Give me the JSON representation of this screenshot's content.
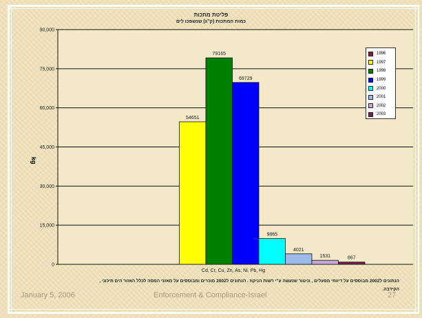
{
  "slide": {
    "footer_date": "January 5, 2006",
    "footer_title": "Enforcement & Compliance-Israel",
    "page_number": "27",
    "footnote": "הנתונים ל2002 מבוססים על דיווחי מפעלים , וניטור שנעשה ע\"י רשות הניקוז . הנתונים ל2002 מוכרים ומבוססים על מאזני המסה לכלל האזור הים תיכוני , הקידבה."
  },
  "colors": {
    "background": "#f1e4c1",
    "plot_background": "#f3e8c8"
  },
  "chart_data": {
    "type": "bar",
    "title": "פליטת מתכות",
    "subtitle": "כמות המתכות (ק\"ג) שנשפכו לים",
    "ylabel": "kg",
    "xlabel": "Cd, Cr, Cu, Zn, As, Ni, Pb, Hg",
    "ylim": [
      0,
      90000
    ],
    "yticks": [
      0,
      15000,
      30000,
      45000,
      60000,
      75000,
      90000
    ],
    "ytick_labels": [
      "0",
      "15,000",
      "30,000",
      "45,000",
      "60,000",
      "75,000",
      "90,000"
    ],
    "grid": true,
    "legend_position": "top-right",
    "series": [
      {
        "name": "1996",
        "value": null,
        "color": "#8b1c3a",
        "label": ""
      },
      {
        "name": "1997",
        "value": 54651,
        "color": "#ffff00",
        "label": "54651"
      },
      {
        "name": "1998",
        "value": 79165,
        "color": "#008000",
        "label": "79165"
      },
      {
        "name": "1999",
        "value": 69729,
        "color": "#0000ff",
        "label": "69729"
      },
      {
        "name": "2000",
        "value": 9865,
        "color": "#00ffff",
        "label": "9865"
      },
      {
        "name": "2001",
        "value": 4021,
        "color": "#9db9e8",
        "label": "4021"
      },
      {
        "name": "2002",
        "value": 1531,
        "color": "#c8a8d8",
        "label": "1531"
      },
      {
        "name": "2003",
        "value": 867,
        "color": "#7a1f4e",
        "label": "867"
      }
    ]
  }
}
